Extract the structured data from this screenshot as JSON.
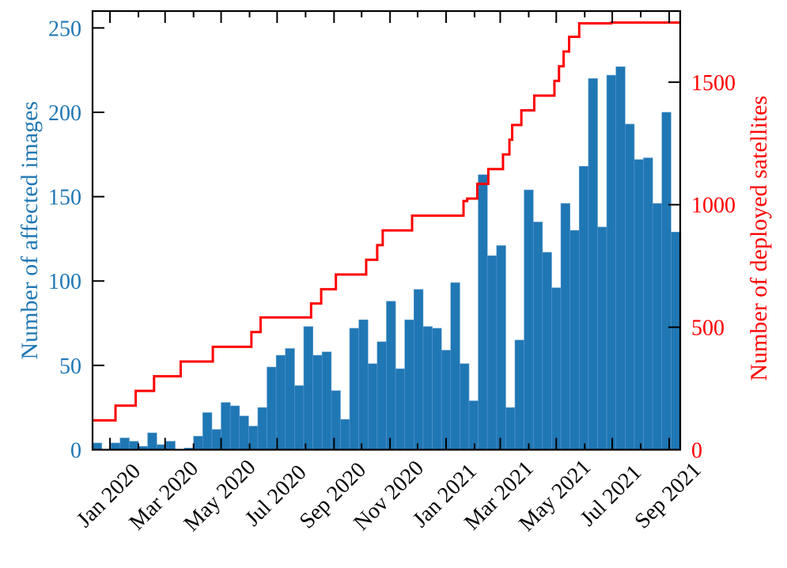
{
  "chart_data": {
    "type": "bar+step-line",
    "title": "",
    "xlabel": "",
    "x_range": [
      "2019-12-13",
      "2021-09-13"
    ],
    "x_tick_labels": [
      {
        "date": "2020-01-01",
        "label": "Jan 2020"
      },
      {
        "date": "2020-03-01",
        "label": "Mar 2020"
      },
      {
        "date": "2020-05-01",
        "label": "May 2020"
      },
      {
        "date": "2020-07-01",
        "label": "Jul 2020"
      },
      {
        "date": "2020-09-01",
        "label": "Sep 2020"
      },
      {
        "date": "2020-11-01",
        "label": "Nov 2020"
      },
      {
        "date": "2021-01-01",
        "label": "Jan 2021"
      },
      {
        "date": "2021-03-01",
        "label": "Mar 2021"
      },
      {
        "date": "2021-05-01",
        "label": "May 2021"
      },
      {
        "date": "2021-07-01",
        "label": "Jul 2021"
      },
      {
        "date": "2021-09-01",
        "label": "Sep 2021"
      }
    ],
    "grid": false,
    "left_axis": {
      "label": "Number of affected images",
      "color": "#1f77b4",
      "ylim": [
        0,
        260
      ],
      "ticks": [
        0,
        50,
        100,
        150,
        200,
        250
      ]
    },
    "right_axis": {
      "label": "Number of deployed satellites",
      "color": "#ff0000",
      "ylim": [
        0,
        1790
      ],
      "ticks": [
        0,
        500,
        1000,
        1500
      ]
    },
    "bars": {
      "axis": "left",
      "color": "#1f77b4",
      "bin_starts": [
        "2019-12-13",
        "2019-12-23",
        "2020-01-02",
        "2020-01-12",
        "2020-01-22",
        "2020-02-01",
        "2020-02-11",
        "2020-02-21",
        "2020-03-02",
        "2020-03-12",
        "2020-03-22",
        "2020-04-01",
        "2020-04-11",
        "2020-04-21",
        "2020-05-01",
        "2020-05-11",
        "2020-05-21",
        "2020-05-31",
        "2020-06-10",
        "2020-06-20",
        "2020-06-30",
        "2020-07-10",
        "2020-07-20",
        "2020-07-30",
        "2020-08-09",
        "2020-08-19",
        "2020-08-29",
        "2020-09-08",
        "2020-09-18",
        "2020-09-28",
        "2020-10-08",
        "2020-10-18",
        "2020-10-28",
        "2020-11-07",
        "2020-11-17",
        "2020-11-27",
        "2020-12-07",
        "2020-12-17",
        "2020-12-27",
        "2021-01-06",
        "2021-01-16",
        "2021-01-26",
        "2021-02-05",
        "2021-02-15",
        "2021-02-25",
        "2021-03-07",
        "2021-03-17",
        "2021-03-27",
        "2021-04-06",
        "2021-04-16",
        "2021-04-26",
        "2021-05-06",
        "2021-05-16",
        "2021-05-26",
        "2021-06-05",
        "2021-06-15",
        "2021-06-25",
        "2021-07-05",
        "2021-07-15",
        "2021-07-25",
        "2021-08-04",
        "2021-08-14",
        "2021-08-24",
        "2021-09-03"
      ],
      "values": [
        4,
        0,
        4,
        7,
        5,
        2,
        10,
        3,
        5,
        0,
        1,
        8,
        22,
        12,
        28,
        26,
        20,
        14,
        25,
        49,
        56,
        60,
        38,
        73,
        56,
        58,
        35,
        18,
        72,
        77,
        51,
        64,
        88,
        48,
        77,
        95,
        73,
        72,
        59,
        99,
        51,
        29,
        163,
        115,
        121,
        25,
        65,
        154,
        135,
        117,
        96,
        146,
        130,
        168,
        220,
        132,
        222,
        227,
        193,
        172,
        173,
        146,
        200,
        129
      ]
    },
    "line": {
      "axis": "right",
      "color": "#ff0000",
      "style": "step",
      "points": [
        {
          "date": "2019-12-13",
          "value": 120
        },
        {
          "date": "2020-01-07",
          "value": 180
        },
        {
          "date": "2020-01-29",
          "value": 240
        },
        {
          "date": "2020-02-18",
          "value": 300
        },
        {
          "date": "2020-03-18",
          "value": 360
        },
        {
          "date": "2020-04-22",
          "value": 420
        },
        {
          "date": "2020-06-03",
          "value": 480
        },
        {
          "date": "2020-06-13",
          "value": 540
        },
        {
          "date": "2020-08-07",
          "value": 597
        },
        {
          "date": "2020-08-18",
          "value": 655
        },
        {
          "date": "2020-09-03",
          "value": 715
        },
        {
          "date": "2020-10-06",
          "value": 775
        },
        {
          "date": "2020-10-18",
          "value": 835
        },
        {
          "date": "2020-10-24",
          "value": 895
        },
        {
          "date": "2020-11-25",
          "value": 955
        },
        {
          "date": "2021-01-20",
          "value": 1015
        },
        {
          "date": "2021-01-24",
          "value": 1025
        },
        {
          "date": "2021-02-04",
          "value": 1085
        },
        {
          "date": "2021-02-16",
          "value": 1145
        },
        {
          "date": "2021-03-04",
          "value": 1205
        },
        {
          "date": "2021-03-11",
          "value": 1265
        },
        {
          "date": "2021-03-14",
          "value": 1325
        },
        {
          "date": "2021-03-24",
          "value": 1385
        },
        {
          "date": "2021-04-07",
          "value": 1445
        },
        {
          "date": "2021-04-29",
          "value": 1505
        },
        {
          "date": "2021-05-04",
          "value": 1565
        },
        {
          "date": "2021-05-09",
          "value": 1625
        },
        {
          "date": "2021-05-15",
          "value": 1685
        },
        {
          "date": "2021-05-26",
          "value": 1740
        },
        {
          "date": "2021-06-30",
          "value": 1743
        },
        {
          "date": "2021-09-13",
          "value": 1743
        }
      ]
    }
  }
}
